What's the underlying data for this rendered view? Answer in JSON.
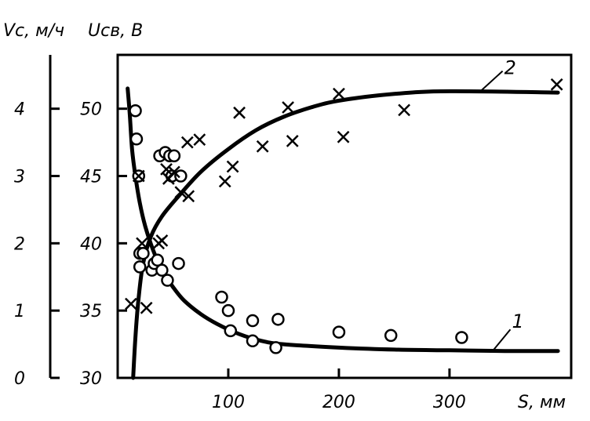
{
  "chart_data": {
    "type": "scatter",
    "title": "",
    "x_axis": {
      "label": "S, мм",
      "range": [
        0,
        410
      ],
      "ticks": [
        100,
        200,
        300
      ]
    },
    "y_axes": [
      {
        "id": "vc",
        "label": "Vc, м/ч",
        "range": [
          0,
          4.8
        ],
        "ticks": [
          0,
          1,
          2,
          3,
          4
        ]
      },
      {
        "id": "ucv",
        "label": "Uсв, В",
        "range": [
          30,
          54
        ],
        "ticks": [
          30,
          35,
          40,
          45,
          50
        ]
      }
    ],
    "series": [
      {
        "name": "1",
        "marker": "circle",
        "y_axis": "vc",
        "points": [
          [
            16,
            3.97
          ],
          [
            17,
            3.55
          ],
          [
            19,
            3.0
          ],
          [
            20,
            1.85
          ],
          [
            20,
            1.65
          ],
          [
            23,
            1.85
          ],
          [
            31,
            1.6
          ],
          [
            33,
            1.7
          ],
          [
            36,
            1.75
          ],
          [
            38,
            3.3
          ],
          [
            40,
            1.6
          ],
          [
            43,
            3.35
          ],
          [
            45,
            1.45
          ],
          [
            47,
            3.3
          ],
          [
            49,
            3.0
          ],
          [
            51,
            3.3
          ],
          [
            55,
            1.7
          ],
          [
            57,
            3.0
          ],
          [
            94,
            1.2
          ],
          [
            100,
            1.0
          ],
          [
            102,
            0.7
          ],
          [
            122,
            0.85
          ],
          [
            122,
            0.55
          ],
          [
            143,
            0.45
          ],
          [
            145,
            0.87
          ],
          [
            200,
            0.68
          ],
          [
            247,
            0.63
          ],
          [
            311,
            0.6
          ]
        ],
        "curve": [
          [
            9,
            4.3
          ],
          [
            11,
            3.9
          ],
          [
            13,
            3.4
          ],
          [
            16,
            3.0
          ],
          [
            20,
            2.6
          ],
          [
            25,
            2.25
          ],
          [
            32,
            1.9
          ],
          [
            40,
            1.6
          ],
          [
            50,
            1.35
          ],
          [
            60,
            1.15
          ],
          [
            75,
            0.95
          ],
          [
            90,
            0.8
          ],
          [
            110,
            0.65
          ],
          [
            130,
            0.55
          ],
          [
            150,
            0.5
          ],
          [
            200,
            0.45
          ],
          [
            250,
            0.42
          ],
          [
            300,
            0.41
          ],
          [
            350,
            0.4
          ],
          [
            398,
            0.4
          ]
        ]
      },
      {
        "name": "2",
        "marker": "x",
        "y_axis": "ucv",
        "points": [
          [
            12,
            35.5
          ],
          [
            19,
            45.0
          ],
          [
            22,
            40.0
          ],
          [
            26,
            35.2
          ],
          [
            37,
            40.0
          ],
          [
            40,
            40.2
          ],
          [
            44,
            45.5
          ],
          [
            46,
            44.8
          ],
          [
            51,
            45.3
          ],
          [
            57,
            43.8
          ],
          [
            63,
            47.5
          ],
          [
            64,
            43.5
          ],
          [
            74,
            47.7
          ],
          [
            97,
            44.6
          ],
          [
            104,
            45.7
          ],
          [
            110,
            49.7
          ],
          [
            131,
            47.2
          ],
          [
            154,
            50.1
          ],
          [
            158,
            47.6
          ],
          [
            200,
            51.1
          ],
          [
            204,
            47.9
          ],
          [
            259,
            49.9
          ],
          [
            397,
            51.8
          ]
        ],
        "curve": [
          [
            14,
            30
          ],
          [
            16,
            33
          ],
          [
            19,
            36
          ],
          [
            23,
            38.5
          ],
          [
            30,
            40.5
          ],
          [
            40,
            42
          ],
          [
            55,
            43.5
          ],
          [
            75,
            45.3
          ],
          [
            100,
            47
          ],
          [
            125,
            48.4
          ],
          [
            150,
            49.4
          ],
          [
            175,
            50.1
          ],
          [
            200,
            50.6
          ],
          [
            250,
            51.1
          ],
          [
            300,
            51.3
          ],
          [
            398,
            51.2
          ]
        ]
      }
    ],
    "legend": "none",
    "grid": false
  }
}
